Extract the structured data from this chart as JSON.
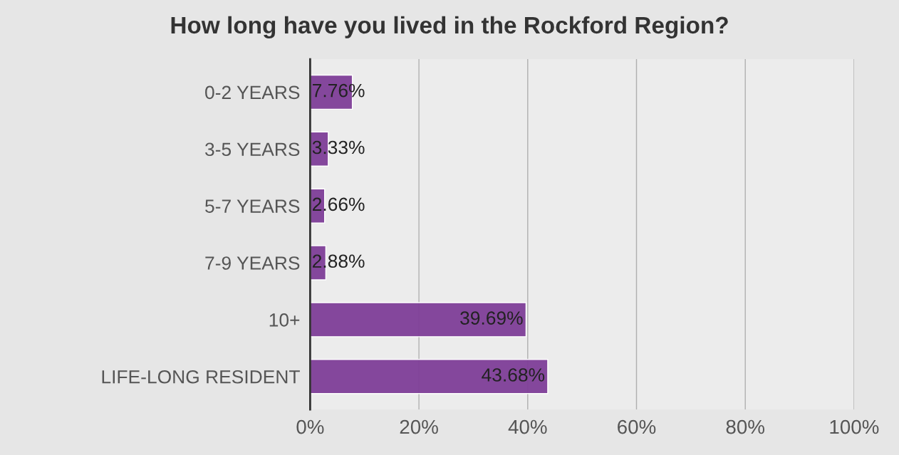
{
  "chart_data": {
    "type": "bar",
    "orientation": "horizontal",
    "title": "How long have you lived in the Rockford Region?",
    "categories": [
      "0-2 YEARS",
      "3-5 YEARS",
      "5-7 YEARS",
      "7-9 YEARS",
      "10+",
      "LIFE-LONG RESIDENT"
    ],
    "values": [
      7.76,
      3.33,
      2.66,
      2.88,
      39.69,
      43.68
    ],
    "value_labels": [
      "7.76%",
      "3.33%",
      "2.66%",
      "2.88%",
      "39.69%",
      "43.68%"
    ],
    "color": "#7f3f98",
    "xlim": [
      0,
      100
    ],
    "xticks": [
      {
        "value": 0,
        "label": "0%"
      },
      {
        "value": 20,
        "label": "20%"
      },
      {
        "value": 40,
        "label": "40%"
      },
      {
        "value": 60,
        "label": "60%"
      },
      {
        "value": 80,
        "label": "80%"
      },
      {
        "value": 100,
        "label": "100%"
      }
    ],
    "grid": "x",
    "legend": false
  }
}
